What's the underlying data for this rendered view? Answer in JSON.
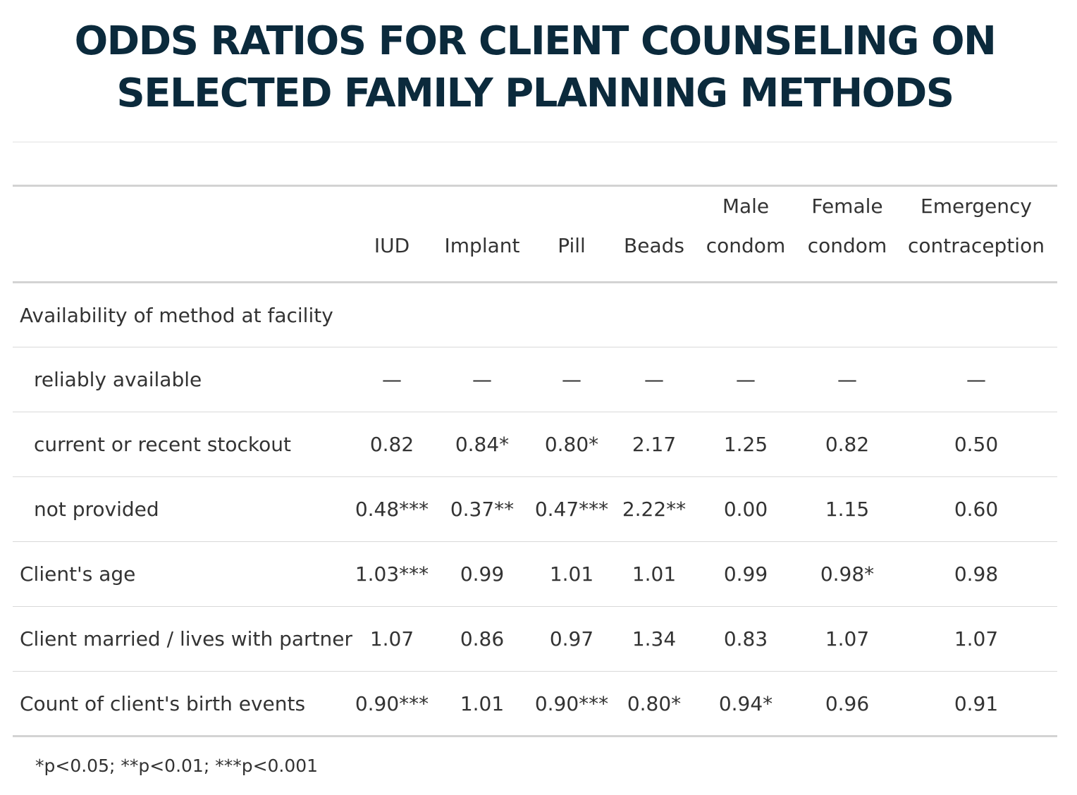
{
  "title": {
    "line1": "ODDS RATIOS FOR CLIENT COUNSELING ON",
    "line2": "SELECTED FAMILY PLANNING METHODS"
  },
  "columns": [
    {
      "l1": "",
      "l2": "IUD"
    },
    {
      "l1": "",
      "l2": "Implant"
    },
    {
      "l1": "",
      "l2": "Pill"
    },
    {
      "l1": "",
      "l2": "Beads"
    },
    {
      "l1": "Male",
      "l2": "condom"
    },
    {
      "l1": "Female",
      "l2": "condom"
    },
    {
      "l1": "Emergency",
      "l2": "contraception"
    }
  ],
  "rows": [
    {
      "label": "Availability of method at facility",
      "values": [
        "",
        "",
        "",
        "",
        "",
        "",
        ""
      ]
    },
    {
      "label": "reliably available",
      "values": [
        "—",
        "—",
        "—",
        "—",
        "—",
        "—",
        "—"
      ]
    },
    {
      "label": "current or recent stockout",
      "values": [
        "0.82",
        "0.84*",
        "0.80*",
        "2.17",
        "1.25",
        "0.82",
        "0.50"
      ]
    },
    {
      "label": "not provided",
      "values": [
        "0.48***",
        "0.37**",
        "0.47***",
        "2.22**",
        "0.00",
        "1.15",
        "0.60"
      ]
    },
    {
      "label": "Client's age",
      "values": [
        "1.03***",
        "0.99",
        "1.01",
        "1.01",
        "0.99",
        "0.98*",
        "0.98"
      ]
    },
    {
      "label": "Client married / lives with partner",
      "values": [
        "1.07",
        "0.86",
        "0.97",
        "1.34",
        "0.83",
        "1.07",
        "1.07"
      ]
    },
    {
      "label": "Count of client's birth events",
      "values": [
        "0.90***",
        "1.01",
        "0.90***",
        "0.80*",
        "0.94*",
        "0.96",
        "0.91"
      ]
    }
  ],
  "footnote": "*p<0.05; **p<0.01; ***p<0.001"
}
